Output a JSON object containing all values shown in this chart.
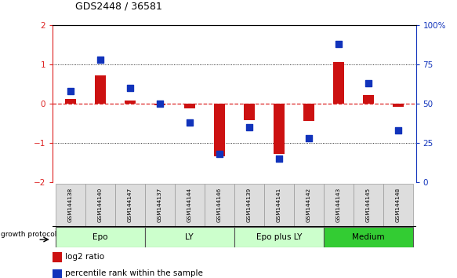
{
  "title": "GDS2448 / 36581",
  "samples": [
    "GSM144138",
    "GSM144140",
    "GSM144147",
    "GSM144137",
    "GSM144144",
    "GSM144146",
    "GSM144139",
    "GSM144141",
    "GSM144142",
    "GSM144143",
    "GSM144145",
    "GSM144148"
  ],
  "log2_ratio": [
    0.12,
    0.72,
    0.08,
    -0.05,
    -0.12,
    -1.35,
    -0.42,
    -1.28,
    -0.45,
    1.05,
    0.22,
    -0.08
  ],
  "percentile_rank": [
    58,
    78,
    60,
    50,
    38,
    18,
    35,
    15,
    28,
    88,
    63,
    33
  ],
  "groups": [
    {
      "label": "Epo",
      "start": 0,
      "end": 3
    },
    {
      "label": "LY",
      "start": 3,
      "end": 6
    },
    {
      "label": "Epo plus LY",
      "start": 6,
      "end": 9
    },
    {
      "label": "Medium",
      "start": 9,
      "end": 12
    }
  ],
  "group_colors": [
    "#ccffcc",
    "#ccffcc",
    "#ccffcc",
    "#33cc33"
  ],
  "bar_color": "#cc1111",
  "dot_color": "#1133bb",
  "ylim_left": [
    -2,
    2
  ],
  "ylim_right": [
    0,
    100
  ],
  "yticks_left": [
    -2,
    -1,
    0,
    1,
    2
  ],
  "yticks_right": [
    0,
    25,
    50,
    75,
    100
  ],
  "ytick_labels_right": [
    "0",
    "25",
    "50",
    "75",
    "100%"
  ]
}
